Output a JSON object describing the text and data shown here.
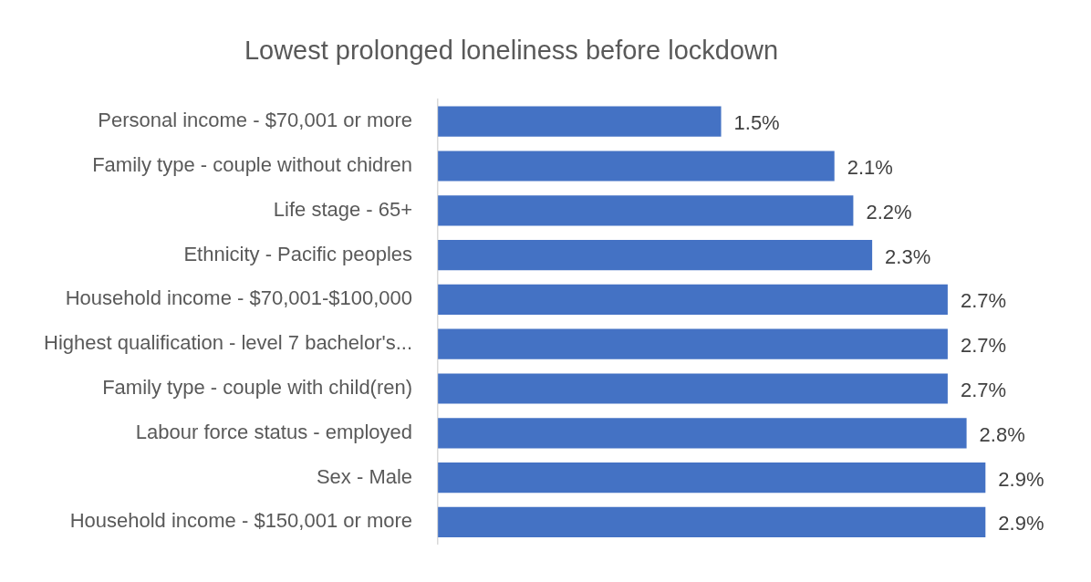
{
  "chart_data": {
    "type": "bar",
    "orientation": "horizontal",
    "title": "Lowest prolonged loneliness before lockdown",
    "categories": [
      "Personal income - $70,001 or more",
      "Family type - couple without chidren",
      "Life stage - 65+",
      "Ethnicity - Pacific peoples",
      "Household income - $70,001-$100,000",
      "Highest qualification - level 7 bachelor's...",
      "Family type - couple with child(ren)",
      "Labour force status - employed",
      "Sex - Male",
      "Household income - $150,001 or more"
    ],
    "values": [
      1.5,
      2.1,
      2.2,
      2.3,
      2.7,
      2.7,
      2.7,
      2.8,
      2.9,
      2.9
    ],
    "value_labels": [
      "1.5%",
      "2.1%",
      "2.2%",
      "2.3%",
      "2.7%",
      "2.7%",
      "2.7%",
      "2.8%",
      "2.9%",
      "2.9%"
    ],
    "color": "#4472c4",
    "tick_labels": "y",
    "grid": false,
    "legend": false
  }
}
